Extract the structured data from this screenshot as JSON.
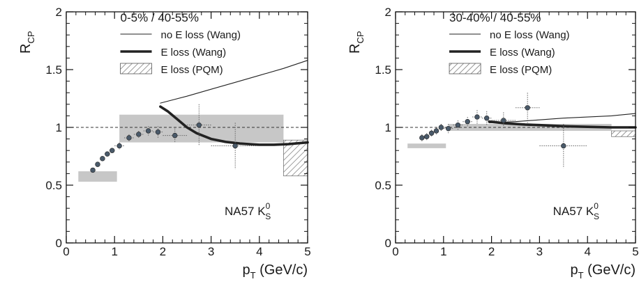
{
  "chart_data": [
    {
      "type": "scatter",
      "title": "0-5% / 40-55%",
      "xlabel": "p",
      "xlabel_sub": "T",
      "xlabel_unit": " (GeV/c)",
      "ylabel": "R",
      "ylabel_sub": "CP",
      "xlim": [
        0,
        5
      ],
      "ylim": [
        0,
        2
      ],
      "xticks": [
        "0",
        "1",
        "2",
        "3",
        "4",
        "5"
      ],
      "yticks": [
        "0",
        "0.5",
        "1",
        "1.5",
        "2"
      ],
      "reference_line": 1,
      "annotation": {
        "main": "NA57 K",
        "sup": "0",
        "sub": "S"
      },
      "legend_position": "top-right",
      "legend": [
        {
          "name": "no E loss (Wang)",
          "style": "thin-line"
        },
        {
          "name": "E loss (Wang)",
          "style": "thick-line"
        },
        {
          "name": "E loss (PQM)",
          "style": "hatched-box"
        }
      ],
      "systematic_boxes": [
        {
          "x0": 0.25,
          "x1": 1.05,
          "y0": 0.53,
          "y1": 0.62
        },
        {
          "x0": 1.1,
          "x1": 4.5,
          "y0": 0.87,
          "y1": 1.11
        }
      ],
      "pqm_band": {
        "x0": 4.5,
        "x1": 5.0,
        "y0": 0.58,
        "y1": 0.89
      },
      "series": [
        {
          "name": "no E loss (Wang)",
          "style": "thin-line",
          "x": [
            1.95,
            2.5,
            3.0,
            3.5,
            4.0,
            4.5,
            5.0
          ],
          "y": [
            1.21,
            1.27,
            1.33,
            1.39,
            1.45,
            1.51,
            1.58
          ]
        },
        {
          "name": "E loss (Wang)",
          "style": "thick-line",
          "x": [
            1.95,
            2.1,
            2.3,
            2.5,
            2.7,
            3.0,
            3.3,
            3.6,
            4.0,
            4.3,
            4.6,
            5.0
          ],
          "y": [
            1.18,
            1.14,
            1.07,
            1.0,
            0.95,
            0.9,
            0.875,
            0.86,
            0.85,
            0.85,
            0.855,
            0.87
          ]
        },
        {
          "name": "NA57 data",
          "style": "points",
          "x": [
            0.55,
            0.65,
            0.75,
            0.85,
            0.95,
            1.1,
            1.3,
            1.5,
            1.7,
            1.9,
            2.25,
            2.75,
            3.5
          ],
          "y": [
            0.63,
            0.68,
            0.73,
            0.77,
            0.8,
            0.84,
            0.91,
            0.94,
            0.97,
            0.96,
            0.93,
            1.02,
            0.84
          ],
          "xerr": [
            0.05,
            0.05,
            0.05,
            0.05,
            0.05,
            0.1,
            0.1,
            0.1,
            0.1,
            0.1,
            0.25,
            0.25,
            0.5
          ],
          "yerr": [
            0.02,
            0.02,
            0.02,
            0.02,
            0.02,
            0.03,
            0.03,
            0.03,
            0.04,
            0.05,
            0.06,
            0.18,
            0.2
          ]
        }
      ]
    },
    {
      "type": "scatter",
      "title": "30-40% / 40-55%",
      "xlabel": "p",
      "xlabel_sub": "T",
      "xlabel_unit": " (GeV/c)",
      "ylabel": "R",
      "ylabel_sub": "CP",
      "xlim": [
        0,
        5
      ],
      "ylim": [
        0,
        2
      ],
      "xticks": [
        "0",
        "1",
        "2",
        "3",
        "4",
        "5"
      ],
      "yticks": [
        "0",
        "0.5",
        "1",
        "1.5",
        "2"
      ],
      "reference_line": 1,
      "annotation": {
        "main": "NA57 K",
        "sup": "0",
        "sub": "S"
      },
      "legend_position": "top-right",
      "legend": [
        {
          "name": "no E loss (Wang)",
          "style": "thin-line"
        },
        {
          "name": "E loss (Wang)",
          "style": "thick-line"
        },
        {
          "name": "E loss (PQM)",
          "style": "hatched-box"
        }
      ],
      "systematic_boxes": [
        {
          "x0": 0.25,
          "x1": 1.05,
          "y0": 0.82,
          "y1": 0.86
        },
        {
          "x0": 1.1,
          "x1": 4.5,
          "y0": 0.97,
          "y1": 1.03
        }
      ],
      "pqm_band": {
        "x0": 4.5,
        "x1": 5.0,
        "y0": 0.92,
        "y1": 0.97
      },
      "series": [
        {
          "name": "no E loss (Wang)",
          "style": "thin-line",
          "x": [
            1.95,
            2.5,
            3.0,
            3.5,
            4.0,
            4.5,
            5.0
          ],
          "y": [
            1.04,
            1.05,
            1.065,
            1.08,
            1.09,
            1.1,
            1.12
          ]
        },
        {
          "name": "E loss (Wang)",
          "style": "thick-line",
          "x": [
            1.95,
            2.3,
            2.7,
            3.0,
            3.5,
            4.0,
            4.5,
            5.0
          ],
          "y": [
            1.05,
            1.035,
            1.025,
            1.02,
            1.01,
            1.005,
            1.0,
            1.0
          ]
        },
        {
          "name": "NA57 data",
          "style": "points",
          "x": [
            0.55,
            0.65,
            0.75,
            0.85,
            0.95,
            1.1,
            1.3,
            1.5,
            1.7,
            1.9,
            2.25,
            2.75,
            3.5
          ],
          "y": [
            0.91,
            0.92,
            0.95,
            0.97,
            1.0,
            0.99,
            1.02,
            1.05,
            1.09,
            1.08,
            1.06,
            1.17,
            0.84
          ],
          "xerr": [
            0.05,
            0.05,
            0.05,
            0.05,
            0.05,
            0.1,
            0.1,
            0.1,
            0.1,
            0.1,
            0.25,
            0.25,
            0.5
          ],
          "yerr": [
            0.03,
            0.03,
            0.03,
            0.03,
            0.03,
            0.04,
            0.04,
            0.04,
            0.06,
            0.06,
            0.07,
            0.13,
            0.19
          ]
        }
      ]
    }
  ]
}
